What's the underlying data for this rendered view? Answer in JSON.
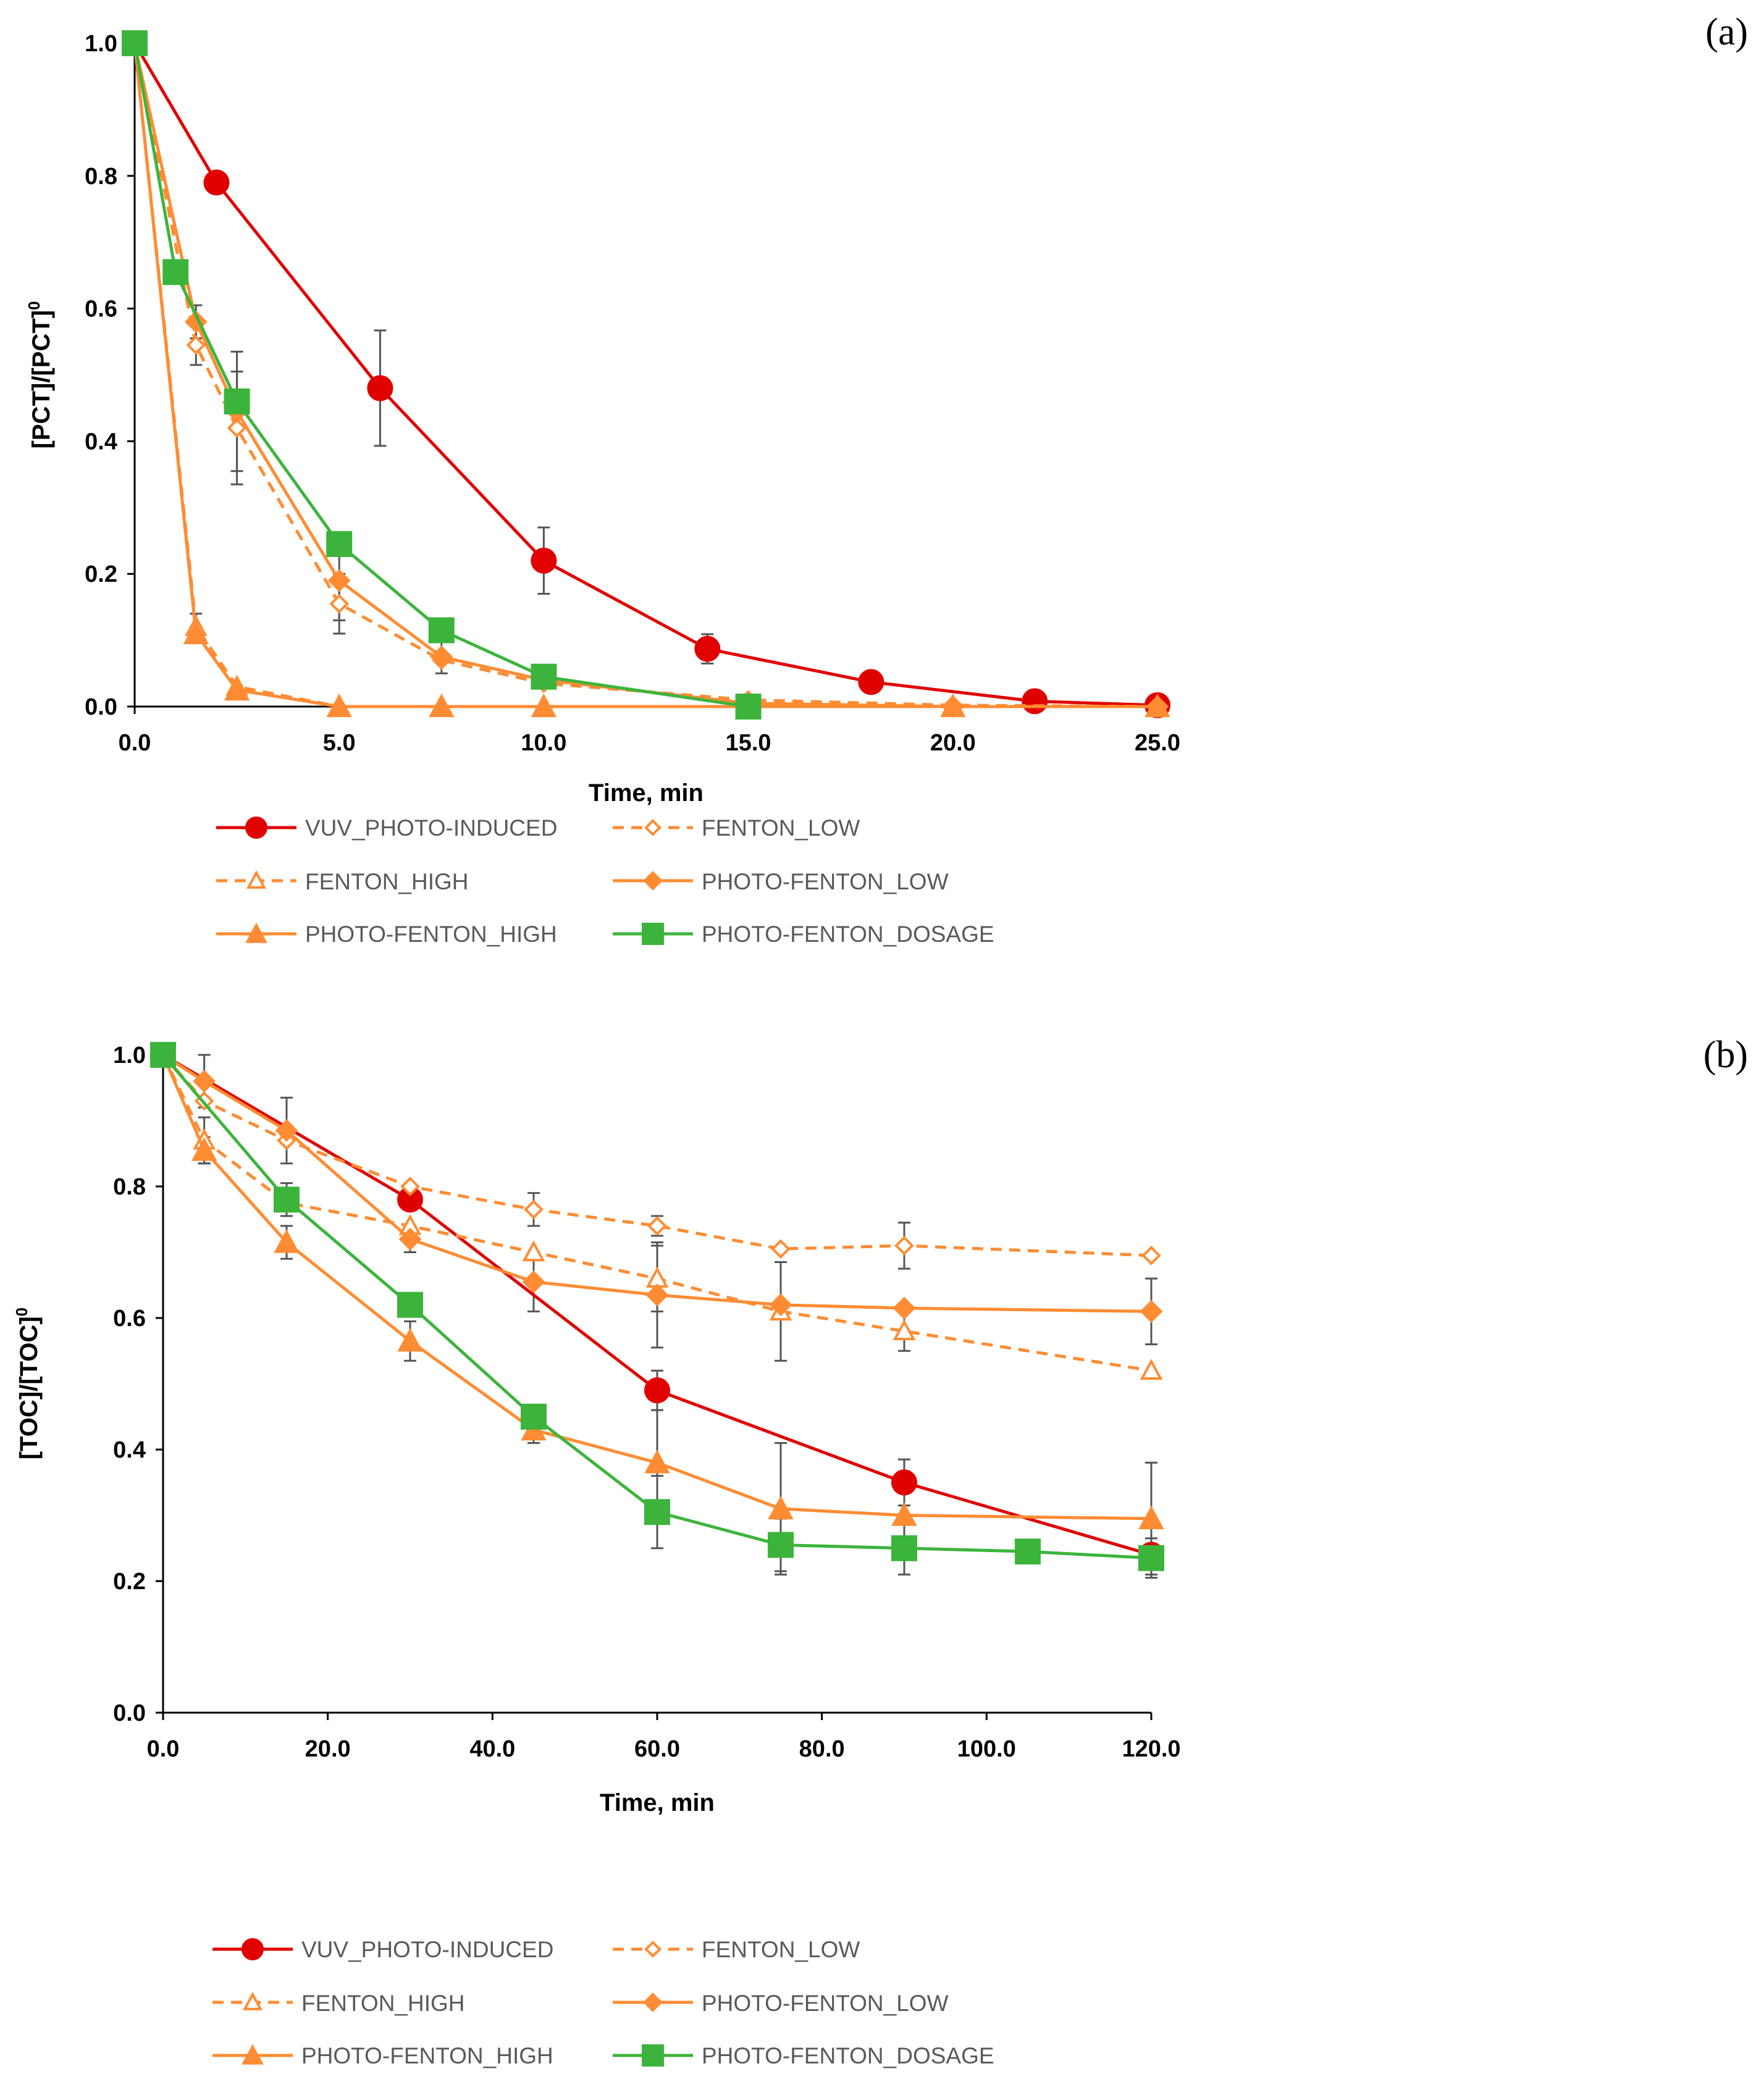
{
  "colors": {
    "vuv": "#e00000",
    "fenton": "#ff8c33",
    "dosage": "#3cb43c",
    "axis": "#000000",
    "errorbar": "#555555"
  },
  "chart_data": [
    {
      "type": "line",
      "panel_label": "(a)",
      "xlabel": "Time, min",
      "ylabel": "[PCT]/[PCT]",
      "ylabel_sup": "0",
      "xlim": [
        0,
        25
      ],
      "ylim": [
        0,
        1
      ],
      "xticks": [
        "0.0",
        "5.0",
        "10.0",
        "15.0",
        "20.0",
        "25.0"
      ],
      "yticks": [
        "0.0",
        "0.2",
        "0.4",
        "0.6",
        "0.8",
        "1.0"
      ],
      "legend_position": "bottom",
      "series": [
        {
          "name": "VUV_PHOTO-INDUCED",
          "style": "solid",
          "marker": "circle",
          "color_key": "vuv",
          "points": [
            {
              "x": 0,
              "y": 1.0
            },
            {
              "x": 2,
              "y": 0.79
            },
            {
              "x": 6,
              "y": 0.48,
              "err": 0.087
            },
            {
              "x": 10,
              "y": 0.22,
              "err": 0.05
            },
            {
              "x": 14,
              "y": 0.087,
              "err": 0.022
            },
            {
              "x": 18,
              "y": 0.037
            },
            {
              "x": 22,
              "y": 0.008
            },
            {
              "x": 25,
              "y": 0.002
            }
          ]
        },
        {
          "name": "FENTON_LOW",
          "style": "dashed",
          "marker": "diamond-open",
          "color_key": "fenton",
          "points": [
            {
              "x": 0,
              "y": 1.0
            },
            {
              "x": 1.5,
              "y": 0.545,
              "err": 0.03
            },
            {
              "x": 2.5,
              "y": 0.42,
              "err": 0.085
            },
            {
              "x": 5,
              "y": 0.155,
              "err": 0.045
            },
            {
              "x": 7.5,
              "y": 0.07
            },
            {
              "x": 10,
              "y": 0.035
            },
            {
              "x": 15,
              "y": 0.01
            },
            {
              "x": 20,
              "y": 0.002
            },
            {
              "x": 25,
              "y": 0.0
            }
          ]
        },
        {
          "name": "FENTON_HIGH",
          "style": "dashed",
          "marker": "triangle-open",
          "color_key": "fenton",
          "points": [
            {
              "x": 0,
              "y": 1.0
            },
            {
              "x": 1.5,
              "y": 0.12,
              "err": 0.02
            },
            {
              "x": 2.5,
              "y": 0.03
            },
            {
              "x": 5,
              "y": 0.0
            },
            {
              "x": 7.5,
              "y": 0.0
            },
            {
              "x": 10,
              "y": 0.0
            },
            {
              "x": 15,
              "y": 0.0
            },
            {
              "x": 20,
              "y": 0.0
            },
            {
              "x": 25,
              "y": 0.0
            }
          ]
        },
        {
          "name": "PHOTO-FENTON_LOW",
          "style": "solid",
          "marker": "diamond",
          "color_key": "fenton",
          "points": [
            {
              "x": 0,
              "y": 1.0
            },
            {
              "x": 1.5,
              "y": 0.58,
              "err": 0.025
            },
            {
              "x": 2.5,
              "y": 0.445,
              "err": 0.09
            },
            {
              "x": 5,
              "y": 0.19,
              "err": 0.06
            },
            {
              "x": 7.5,
              "y": 0.075,
              "err": 0.025
            },
            {
              "x": 10,
              "y": 0.04
            },
            {
              "x": 15,
              "y": 0.005
            },
            {
              "x": 20,
              "y": 0.0
            },
            {
              "x": 25,
              "y": 0.0
            }
          ]
        },
        {
          "name": "PHOTO-FENTON_HIGH",
          "style": "solid",
          "marker": "triangle",
          "color_key": "fenton",
          "points": [
            {
              "x": 0,
              "y": 1.0
            },
            {
              "x": 1.5,
              "y": 0.11
            },
            {
              "x": 2.5,
              "y": 0.025
            },
            {
              "x": 5,
              "y": 0.0
            },
            {
              "x": 7.5,
              "y": 0.0
            },
            {
              "x": 10,
              "y": 0.0
            },
            {
              "x": 15,
              "y": 0.0
            },
            {
              "x": 20,
              "y": 0.0
            },
            {
              "x": 25,
              "y": 0.0
            }
          ]
        },
        {
          "name": "PHOTO-FENTON_DOSAGE",
          "style": "solid",
          "marker": "square",
          "color_key": "dosage",
          "points": [
            {
              "x": 0,
              "y": 1.0
            },
            {
              "x": 1,
              "y": 0.655
            },
            {
              "x": 2.5,
              "y": 0.46
            },
            {
              "x": 5,
              "y": 0.245
            },
            {
              "x": 7.5,
              "y": 0.115
            },
            {
              "x": 10,
              "y": 0.045
            },
            {
              "x": 15,
              "y": 0.0
            }
          ]
        }
      ]
    },
    {
      "type": "line",
      "panel_label": "(b)",
      "xlabel": "Time, min",
      "ylabel": "[TOC]/[TOC]",
      "ylabel_sup": "0",
      "xlim": [
        0,
        120
      ],
      "ylim": [
        0,
        1
      ],
      "xticks": [
        "0.0",
        "20.0",
        "40.0",
        "60.0",
        "80.0",
        "100.0",
        "120.0"
      ],
      "yticks": [
        "0.0",
        "0.2",
        "0.4",
        "0.6",
        "0.8",
        "1.0"
      ],
      "legend_position": "bottom",
      "series": [
        {
          "name": "VUV_PHOTO-INDUCED",
          "style": "solid",
          "marker": "circle",
          "color_key": "vuv",
          "points": [
            {
              "x": 0,
              "y": 1.0
            },
            {
              "x": 30,
              "y": 0.78
            },
            {
              "x": 60,
              "y": 0.49,
              "err": 0.03
            },
            {
              "x": 90,
              "y": 0.35,
              "err": 0.035
            },
            {
              "x": 120,
              "y": 0.24
            }
          ]
        },
        {
          "name": "FENTON_LOW",
          "style": "dashed",
          "marker": "diamond-open",
          "color_key": "fenton",
          "points": [
            {
              "x": 0,
              "y": 1.0
            },
            {
              "x": 5,
              "y": 0.93
            },
            {
              "x": 15,
              "y": 0.87
            },
            {
              "x": 30,
              "y": 0.8
            },
            {
              "x": 45,
              "y": 0.765,
              "err": 0.025
            },
            {
              "x": 60,
              "y": 0.74,
              "err": 0.015
            },
            {
              "x": 75,
              "y": 0.705
            },
            {
              "x": 90,
              "y": 0.71,
              "err": 0.035
            },
            {
              "x": 120,
              "y": 0.695
            }
          ]
        },
        {
          "name": "FENTON_HIGH",
          "style": "dashed",
          "marker": "triangle-open",
          "color_key": "fenton",
          "points": [
            {
              "x": 0,
              "y": 1.0
            },
            {
              "x": 5,
              "y": 0.87,
              "err": 0.035
            },
            {
              "x": 15,
              "y": 0.775
            },
            {
              "x": 30,
              "y": 0.74
            },
            {
              "x": 45,
              "y": 0.7
            },
            {
              "x": 60,
              "y": 0.66,
              "err": 0.05
            },
            {
              "x": 75,
              "y": 0.61,
              "err": 0.075
            },
            {
              "x": 90,
              "y": 0.58,
              "err": 0.03
            },
            {
              "x": 120,
              "y": 0.52
            }
          ]
        },
        {
          "name": "PHOTO-FENTON_LOW",
          "style": "solid",
          "marker": "diamond",
          "color_key": "fenton",
          "points": [
            {
              "x": 0,
              "y": 1.0
            },
            {
              "x": 5,
              "y": 0.96,
              "err": 0.04
            },
            {
              "x": 15,
              "y": 0.885,
              "err": 0.05
            },
            {
              "x": 30,
              "y": 0.72,
              "err": 0.02
            },
            {
              "x": 45,
              "y": 0.655,
              "err": 0.045
            },
            {
              "x": 60,
              "y": 0.635,
              "err": 0.08
            },
            {
              "x": 75,
              "y": 0.62
            },
            {
              "x": 90,
              "y": 0.615
            },
            {
              "x": 120,
              "y": 0.61,
              "err": 0.05
            }
          ]
        },
        {
          "name": "PHOTO-FENTON_HIGH",
          "style": "solid",
          "marker": "triangle",
          "color_key": "fenton",
          "points": [
            {
              "x": 0,
              "y": 1.0
            },
            {
              "x": 5,
              "y": 0.855,
              "err": 0.02
            },
            {
              "x": 15,
              "y": 0.715,
              "err": 0.025
            },
            {
              "x": 30,
              "y": 0.565,
              "err": 0.03
            },
            {
              "x": 45,
              "y": 0.43,
              "err": 0.02
            },
            {
              "x": 60,
              "y": 0.38,
              "err": 0.08
            },
            {
              "x": 75,
              "y": 0.31,
              "err": 0.1
            },
            {
              "x": 90,
              "y": 0.3
            },
            {
              "x": 120,
              "y": 0.295,
              "err": 0.085
            }
          ]
        },
        {
          "name": "PHOTO-FENTON_DOSAGE",
          "style": "solid",
          "marker": "square",
          "color_key": "dosage",
          "points": [
            {
              "x": 0,
              "y": 1.0
            },
            {
              "x": 15,
              "y": 0.78,
              "err": 0.025
            },
            {
              "x": 30,
              "y": 0.62
            },
            {
              "x": 45,
              "y": 0.45
            },
            {
              "x": 60,
              "y": 0.305,
              "err": 0.055
            },
            {
              "x": 75,
              "y": 0.255,
              "err": 0.04
            },
            {
              "x": 90,
              "y": 0.25,
              "err": 0.04
            },
            {
              "x": 105,
              "y": 0.245
            },
            {
              "x": 120,
              "y": 0.235,
              "err": 0.03
            }
          ]
        }
      ]
    }
  ]
}
